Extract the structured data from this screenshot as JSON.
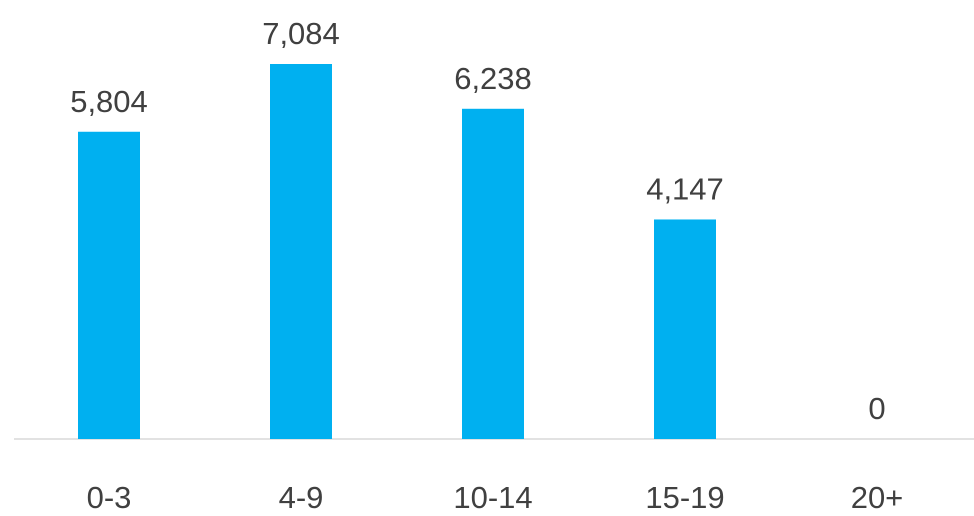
{
  "chart_data": {
    "type": "bar",
    "title": "",
    "xlabel": "",
    "ylabel": "",
    "categories": [
      "0-3",
      "4-9",
      "10-14",
      "15-19",
      "20+"
    ],
    "values": [
      5804,
      7084,
      6238,
      4147,
      0
    ],
    "value_labels": [
      "5,804",
      "7,084",
      "6,238",
      "4,147",
      "0"
    ],
    "ylim": [
      0,
      7084
    ],
    "bar_color": "#00B0F0",
    "axis_color": "#D9D9D9",
    "text_color": "#404040",
    "grid": false,
    "legend": "none"
  }
}
